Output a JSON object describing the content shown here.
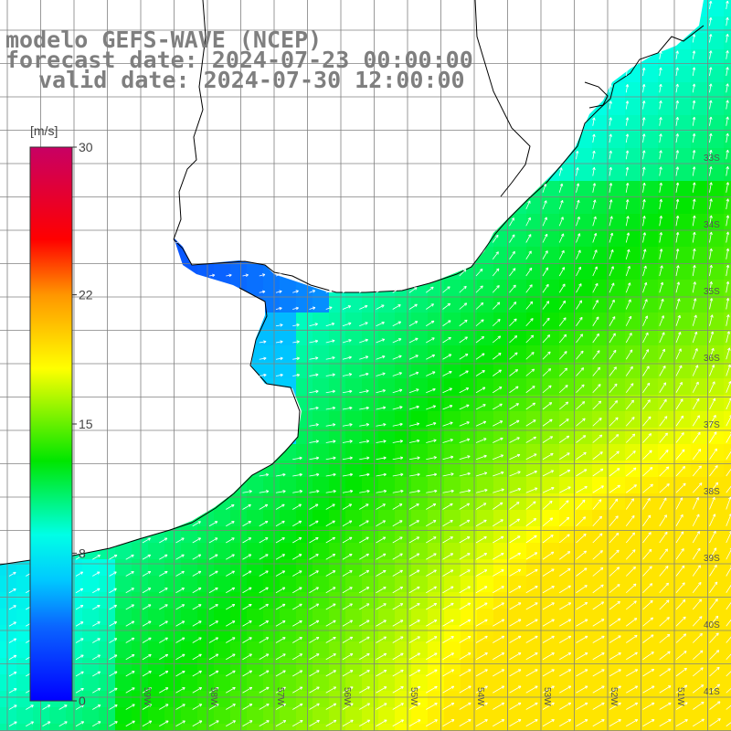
{
  "header": {
    "model": "modelo GEFS-WAVE (NCEP)",
    "forecast": "forecast date: 2024-07-23 00:00:00",
    "valid": "valid date: 2024-07-30 12:00:00"
  },
  "colorbar": {
    "unit": "[m/s]",
    "min": 0,
    "max": 30,
    "ticks": [
      "30",
      "22",
      "15",
      "8",
      "0"
    ],
    "tick_values": [
      30,
      22,
      15,
      8,
      0
    ],
    "colors": [
      "#0000ff",
      "#0a64ff",
      "#00c8ff",
      "#00ffe6",
      "#00e600",
      "#ffff00",
      "#ff9600",
      "#ff0000",
      "#c80064"
    ]
  },
  "grid": {
    "lat_labels": [
      "33S",
      "34S",
      "35S",
      "36S",
      "37S",
      "38S",
      "39S",
      "40S",
      "41S"
    ],
    "lat_values": [
      -33,
      -34,
      -35,
      -36,
      -37,
      -38,
      -39,
      -40,
      -41
    ],
    "lon_labels": [
      "59W",
      "58W",
      "57W",
      "56W",
      "55W",
      "54W",
      "53W",
      "52W",
      "51W"
    ],
    "lon_values": [
      -59,
      -58,
      -57,
      -56,
      -55,
      -54,
      -53,
      -52,
      -51
    ]
  },
  "map": {
    "land_color": "#ffffff",
    "coast_color": "#000000",
    "grid_color": "#808080",
    "arrow_color": "#ffffff"
  }
}
